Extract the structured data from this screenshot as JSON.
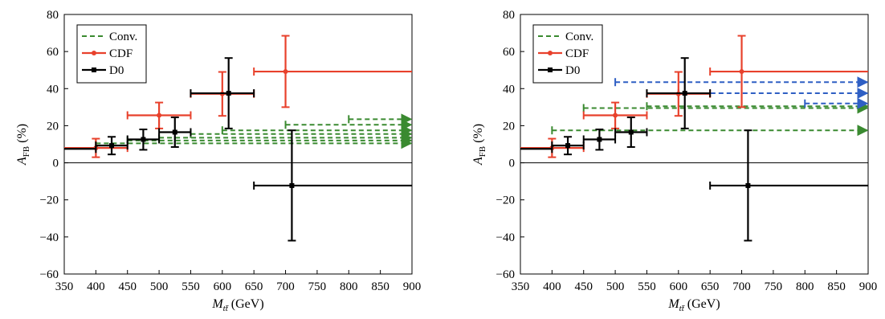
{
  "colors": {
    "conv": "#3a8a30",
    "cdf": "#e8412c",
    "d0": "#000000",
    "extra": "#2f5fc4"
  },
  "chart_data": [
    {
      "type": "scatter",
      "panel": "left",
      "xlabel_main": "M",
      "xlabel_sub": "tt̄",
      "xlabel_unit": " (GeV)",
      "ylabel_main": "A",
      "ylabel_sub": "FB",
      "ylabel_unit": " (%)",
      "xlim": [
        350,
        900
      ],
      "ylim": [
        -60,
        80
      ],
      "xticks": [
        350,
        400,
        450,
        500,
        550,
        600,
        650,
        700,
        750,
        800,
        850,
        900
      ],
      "yticks": [
        -60,
        -40,
        -20,
        0,
        20,
        40,
        60,
        80
      ],
      "ytick_labels": [
        "−60",
        "−40",
        "−20",
        "0",
        "20",
        "40",
        "60",
        "80"
      ],
      "grid": false,
      "legend_position": "top-left",
      "legend": [
        {
          "key": "conv",
          "label": "Conv."
        },
        {
          "key": "cdf",
          "label": "CDF"
        },
        {
          "key": "d0",
          "label": "D0"
        }
      ],
      "series": [
        {
          "key": "cdf",
          "name": "CDF",
          "points": [
            {
              "x": 400,
              "y": 8,
              "xlo": 350,
              "xhi": 450,
              "ylo": 3,
              "yhi": 13
            },
            {
              "x": 500,
              "y": 25.6,
              "xlo": 450,
              "xhi": 550,
              "ylo": 18.5,
              "yhi": 32.5
            },
            {
              "x": 600,
              "y": 37.2,
              "xlo": 550,
              "xhi": 650,
              "ylo": 25.3,
              "yhi": 49
            },
            {
              "x": 700,
              "y": 49.2,
              "xlo": 650,
              "xhi": 900,
              "ylo": 30,
              "yhi": 68.5
            }
          ]
        },
        {
          "key": "d0",
          "name": "D0",
          "points": [
            {
              "x": 425,
              "y": 9.3,
              "xlo": 400,
              "xhi": 450,
              "ylo": 4.5,
              "yhi": 14
            },
            {
              "x": 475,
              "y": 12.6,
              "xlo": 450,
              "xhi": 500,
              "ylo": 7,
              "yhi": 18
            },
            {
              "x": 525,
              "y": 16.5,
              "xlo": 500,
              "xhi": 550,
              "ylo": 8.5,
              "yhi": 24.5
            },
            {
              "x": 610,
              "y": 37.5,
              "xlo": 550,
              "xhi": 650,
              "ylo": 18.5,
              "yhi": 56.5
            },
            {
              "x": 710,
              "y": -12.3,
              "xlo": 650,
              "xhi": 900,
              "ylo": -42,
              "yhi": 17.5
            },
            {
              "x": 375,
              "y": 7.5,
              "xlo": 350,
              "xhi": 400,
              "ylo": 7.5,
              "yhi": 7.5
            }
          ]
        }
      ],
      "conv_lines": [
        {
          "x0": 400,
          "y": 10.5
        },
        {
          "x0": 450,
          "y": 12
        },
        {
          "x0": 500,
          "y": 13.5
        },
        {
          "x0": 550,
          "y": 15.5
        },
        {
          "x0": 600,
          "y": 17.5
        },
        {
          "x0": 700,
          "y": 20.5
        },
        {
          "x0": 800,
          "y": 23.5
        }
      ],
      "extra_lines": []
    },
    {
      "type": "scatter",
      "panel": "right",
      "xlabel_main": "M",
      "xlabel_sub": "tt̄",
      "xlabel_unit": " (GeV)",
      "ylabel_main": "A",
      "ylabel_sub": "FB",
      "ylabel_unit": " (%)",
      "xlim": [
        350,
        900
      ],
      "ylim": [
        -60,
        80
      ],
      "xticks": [
        350,
        400,
        450,
        500,
        550,
        600,
        650,
        700,
        750,
        800,
        850,
        900
      ],
      "yticks": [
        -60,
        -40,
        -20,
        0,
        20,
        40,
        60,
        80
      ],
      "ytick_labels": [
        "−60",
        "−40",
        "−20",
        "0",
        "20",
        "40",
        "60",
        "80"
      ],
      "grid": false,
      "legend_position": "top-left",
      "legend": [
        {
          "key": "conv",
          "label": "Conv."
        },
        {
          "key": "cdf",
          "label": "CDF"
        },
        {
          "key": "d0",
          "label": "D0"
        }
      ],
      "series": [
        {
          "key": "cdf",
          "name": "CDF",
          "points": [
            {
              "x": 400,
              "y": 8,
              "xlo": 350,
              "xhi": 450,
              "ylo": 3,
              "yhi": 13
            },
            {
              "x": 500,
              "y": 25.6,
              "xlo": 450,
              "xhi": 550,
              "ylo": 18.5,
              "yhi": 32.5
            },
            {
              "x": 600,
              "y": 37.2,
              "xlo": 550,
              "xhi": 650,
              "ylo": 25.3,
              "yhi": 49
            },
            {
              "x": 700,
              "y": 49.2,
              "xlo": 650,
              "xhi": 900,
              "ylo": 30,
              "yhi": 68.5
            }
          ]
        },
        {
          "key": "d0",
          "name": "D0",
          "points": [
            {
              "x": 425,
              "y": 9.3,
              "xlo": 400,
              "xhi": 450,
              "ylo": 4.5,
              "yhi": 14
            },
            {
              "x": 475,
              "y": 12.6,
              "xlo": 450,
              "xhi": 500,
              "ylo": 7,
              "yhi": 18
            },
            {
              "x": 525,
              "y": 16.5,
              "xlo": 500,
              "xhi": 550,
              "ylo": 8.5,
              "yhi": 24.5
            },
            {
              "x": 610,
              "y": 37.5,
              "xlo": 550,
              "xhi": 650,
              "ylo": 18.5,
              "yhi": 56.5
            },
            {
              "x": 710,
              "y": -12.3,
              "xlo": 650,
              "xhi": 900,
              "ylo": -42,
              "yhi": 17.5
            },
            {
              "x": 375,
              "y": 7.5,
              "xlo": 350,
              "xhi": 400,
              "ylo": 7.5,
              "yhi": 7.5
            }
          ]
        }
      ],
      "conv_lines": [
        {
          "x0": 400,
          "y": 17.5
        },
        {
          "x0": 450,
          "y": 29.5
        },
        {
          "x0": 550,
          "y": 30.5
        }
      ],
      "extra_lines": [
        {
          "x0": 500,
          "y": 43.5
        },
        {
          "x0": 600,
          "y": 37.5
        },
        {
          "x0": 800,
          "y": 32
        }
      ]
    }
  ]
}
